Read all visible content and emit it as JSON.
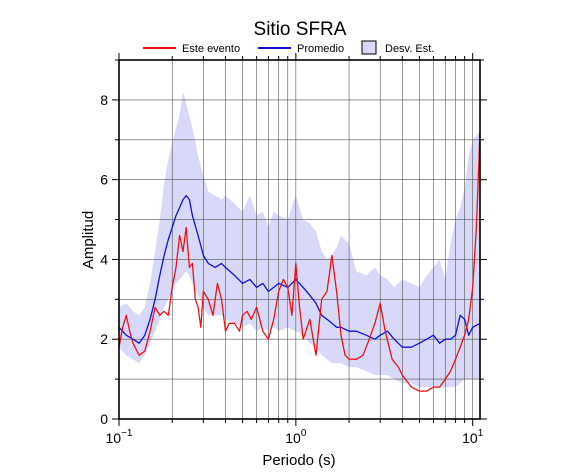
{
  "chart_data": {
    "type": "line",
    "title": "Sitio SFRA",
    "xlabel": "Periodo (s)",
    "ylabel": "Amplitud",
    "x_scale": "log",
    "xlim": [
      0.1,
      11
    ],
    "ylim": [
      0,
      9
    ],
    "grid": true,
    "legend_position": "top",
    "x_ticks": [
      {
        "base": "10",
        "exp": "−1"
      },
      {
        "base": "10",
        "exp": "0"
      },
      {
        "base": "10",
        "exp": "1"
      }
    ],
    "y_ticks": [
      "0",
      "2",
      "4",
      "6",
      "8"
    ],
    "legend": [
      {
        "label": "Este evento",
        "kind": "line",
        "color": "#ee1111"
      },
      {
        "label": "Promedio",
        "kind": "line",
        "color": "#1111dd"
      },
      {
        "label": "Desv. Est.",
        "kind": "box",
        "color": "#d8d8f8"
      }
    ],
    "series": [
      {
        "label_ref": 0,
        "color": "#ee1111",
        "x": [
          0.1,
          0.105,
          0.11,
          0.115,
          0.12,
          0.13,
          0.14,
          0.15,
          0.16,
          0.17,
          0.18,
          0.19,
          0.2,
          0.21,
          0.22,
          0.23,
          0.24,
          0.25,
          0.26,
          0.27,
          0.28,
          0.29,
          0.3,
          0.32,
          0.34,
          0.36,
          0.38,
          0.4,
          0.42,
          0.45,
          0.48,
          0.5,
          0.53,
          0.56,
          0.6,
          0.65,
          0.7,
          0.75,
          0.8,
          0.85,
          0.9,
          0.95,
          1.0,
          1.05,
          1.1,
          1.2,
          1.3,
          1.4,
          1.5,
          1.6,
          1.7,
          1.8,
          1.9,
          2.0,
          2.2,
          2.4,
          2.6,
          2.8,
          3.0,
          3.2,
          3.5,
          3.8,
          4.0,
          4.5,
          5.0,
          5.5,
          6.0,
          6.5,
          7.0,
          7.5,
          8.0,
          8.5,
          9.0,
          9.5,
          10.0,
          10.5,
          11.0
        ],
        "y": [
          1.8,
          2.3,
          2.6,
          2.2,
          1.9,
          1.6,
          1.7,
          2.2,
          2.8,
          2.6,
          2.7,
          2.6,
          3.3,
          3.8,
          4.6,
          4.2,
          4.8,
          3.8,
          3.9,
          3.0,
          2.8,
          2.3,
          3.2,
          3.0,
          2.6,
          3.4,
          3.0,
          2.2,
          2.4,
          2.4,
          2.2,
          2.6,
          2.7,
          2.5,
          2.8,
          2.2,
          2.0,
          2.5,
          3.2,
          3.5,
          3.3,
          2.6,
          3.9,
          2.8,
          2.0,
          2.5,
          1.6,
          3.0,
          3.2,
          4.1,
          3.2,
          2.1,
          1.6,
          1.5,
          1.5,
          1.6,
          2.0,
          2.4,
          2.9,
          2.2,
          1.5,
          1.3,
          1.1,
          0.8,
          0.7,
          0.7,
          0.8,
          0.8,
          1.0,
          1.2,
          1.5,
          1.8,
          2.1,
          2.5,
          3.3,
          4.8,
          7.2
        ]
      },
      {
        "label_ref": 1,
        "color": "#1111dd",
        "x": [
          0.1,
          0.11,
          0.12,
          0.13,
          0.14,
          0.15,
          0.16,
          0.17,
          0.18,
          0.19,
          0.2,
          0.21,
          0.22,
          0.23,
          0.24,
          0.25,
          0.26,
          0.28,
          0.3,
          0.32,
          0.35,
          0.38,
          0.4,
          0.45,
          0.5,
          0.55,
          0.6,
          0.65,
          0.7,
          0.75,
          0.8,
          0.9,
          1.0,
          1.1,
          1.2,
          1.3,
          1.4,
          1.5,
          1.6,
          1.7,
          1.8,
          2.0,
          2.2,
          2.5,
          2.8,
          3.0,
          3.3,
          3.6,
          4.0,
          4.5,
          5.0,
          5.5,
          6.0,
          6.5,
          7.0,
          7.5,
          8.0,
          8.5,
          9.0,
          9.5,
          10.0,
          11.0
        ],
        "y": [
          2.3,
          2.1,
          2.0,
          1.9,
          2.1,
          2.5,
          3.0,
          3.6,
          4.1,
          4.5,
          4.8,
          5.1,
          5.3,
          5.5,
          5.6,
          5.5,
          5.1,
          4.6,
          4.1,
          3.9,
          3.8,
          3.9,
          3.8,
          3.6,
          3.4,
          3.5,
          3.3,
          3.4,
          3.2,
          3.3,
          3.4,
          3.3,
          3.5,
          3.3,
          3.1,
          2.9,
          2.6,
          2.5,
          2.4,
          2.3,
          2.3,
          2.2,
          2.2,
          2.1,
          2.0,
          2.1,
          2.2,
          2.0,
          1.8,
          1.8,
          1.9,
          2.0,
          2.1,
          1.9,
          2.0,
          2.0,
          2.1,
          2.6,
          2.5,
          2.1,
          2.3,
          2.4
        ]
      }
    ],
    "band": {
      "label_ref": 2,
      "color": "#d8d8f8",
      "x": [
        0.1,
        0.11,
        0.12,
        0.13,
        0.14,
        0.15,
        0.16,
        0.17,
        0.18,
        0.19,
        0.2,
        0.21,
        0.22,
        0.23,
        0.24,
        0.25,
        0.26,
        0.28,
        0.3,
        0.32,
        0.35,
        0.38,
        0.4,
        0.45,
        0.5,
        0.55,
        0.6,
        0.65,
        0.7,
        0.75,
        0.8,
        0.9,
        1.0,
        1.1,
        1.2,
        1.3,
        1.4,
        1.5,
        1.6,
        1.7,
        1.8,
        2.0,
        2.2,
        2.5,
        2.8,
        3.0,
        3.3,
        3.6,
        4.0,
        4.5,
        5.0,
        5.5,
        6.0,
        6.5,
        7.0,
        7.5,
        8.0,
        8.5,
        9.0,
        9.5,
        10.0,
        11.0
      ],
      "upper": [
        2.8,
        2.9,
        2.7,
        2.6,
        2.8,
        3.4,
        4.2,
        5.0,
        5.9,
        6.5,
        6.9,
        7.3,
        7.6,
        8.2,
        7.9,
        7.6,
        7.3,
        6.6,
        6.1,
        5.7,
        5.6,
        5.5,
        5.6,
        5.4,
        5.2,
        5.6,
        5.1,
        5.2,
        4.8,
        5.2,
        5.1,
        5.0,
        5.6,
        5.0,
        4.9,
        4.7,
        4.2,
        4.0,
        4.1,
        4.3,
        4.6,
        4.4,
        3.7,
        3.6,
        3.8,
        3.6,
        3.5,
        3.3,
        3.5,
        3.4,
        3.3,
        3.6,
        3.8,
        4.0,
        3.5,
        4.4,
        5.0,
        5.3,
        5.8,
        6.6,
        7.0,
        7.2
      ],
      "lower": [
        1.8,
        1.6,
        1.5,
        1.4,
        1.6,
        1.9,
        2.2,
        2.5,
        2.8,
        3.0,
        3.2,
        3.4,
        3.5,
        3.6,
        3.7,
        3.6,
        3.4,
        3.1,
        2.8,
        2.6,
        2.6,
        2.6,
        2.5,
        2.4,
        2.3,
        2.4,
        2.2,
        2.3,
        2.2,
        2.3,
        2.2,
        2.3,
        2.2,
        2.1,
        1.9,
        1.8,
        1.6,
        1.5,
        1.4,
        1.4,
        1.4,
        1.3,
        1.3,
        1.2,
        1.1,
        1.1,
        1.1,
        1.0,
        0.9,
        0.9,
        0.8,
        0.8,
        0.8,
        0.8,
        0.8,
        0.8,
        0.8,
        0.9,
        1.0,
        1.0,
        1.0,
        1.0
      ]
    }
  }
}
